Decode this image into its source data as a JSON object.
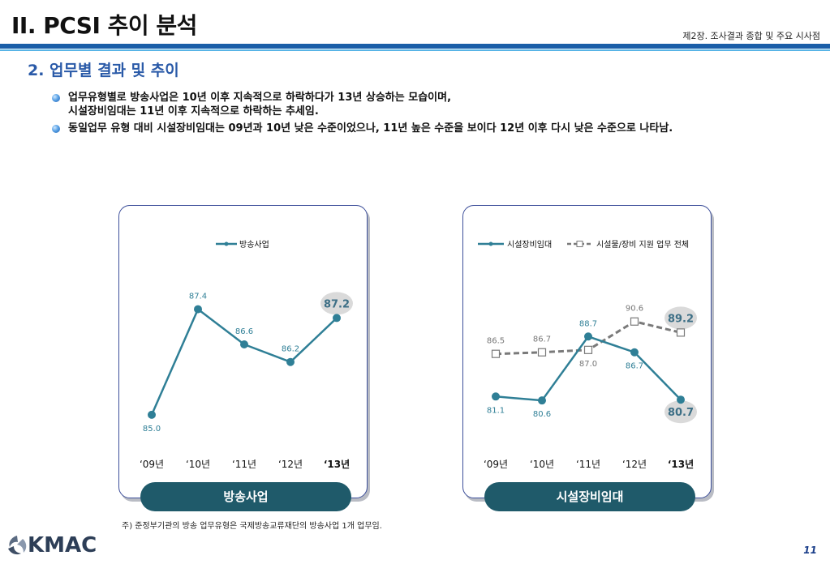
{
  "header": {
    "title": "II. PCSI 추이 분석",
    "chapter": "제2장. 조사결과 종합 및 주요 시사점"
  },
  "section_title": "2. 업무별 결과 및 추이",
  "bullets": [
    {
      "line1": "업무유형별로 방송사업은 10년 이후 지속적으로 하락하다가 13년 상승하는 모습이며,",
      "line2": "시설장비임대는 11년 이후 지속적으로 하락하는 추세임."
    },
    {
      "line1": "동일업무 유형 대비 시설장비임대는 09년과 10년 낮은 수준이었으나, 11년 높은 수준을 보이다 12년 이후 다시 낮은 수준으로 나타남.",
      "line2": ""
    }
  ],
  "cards": [
    {
      "label": "방송사업"
    },
    {
      "label": "시설장비임대"
    }
  ],
  "footnote": "주) 준정부기관의 방송 업무유형은 국제방송교류재단의 방송사업 1개 업무임.",
  "logo": "KMAC",
  "page_number": "11",
  "colors": {
    "teal": "#2f7f96",
    "gray": "#7a7a7a",
    "highlight": "#3d6f86",
    "blue_rule": "#1a5ea8"
  },
  "chart_data": [
    {
      "type": "line",
      "categories": [
        "‘09년",
        "‘10년",
        "‘11년",
        "‘12년",
        "‘13년"
      ],
      "series": [
        {
          "name": "방송사업",
          "values": [
            85.0,
            87.4,
            86.6,
            86.2,
            87.2
          ],
          "labels": [
            "85.0",
            "87.4",
            "86.6",
            "86.2",
            "87.2"
          ],
          "style": "solid-circle",
          "color": "#2f7f96"
        }
      ],
      "ylim": [
        84.5,
        88.0
      ],
      "highlight_last": true,
      "legend": "top-center"
    },
    {
      "type": "line",
      "categories": [
        "‘09년",
        "‘10년",
        "‘11년",
        "‘12년",
        "‘13년"
      ],
      "series": [
        {
          "name": "시설장비임대",
          "values": [
            81.1,
            80.6,
            88.7,
            86.7,
            80.7
          ],
          "labels": [
            "81.1",
            "80.6",
            "88.7",
            "86.7",
            "80.7"
          ],
          "style": "solid-circle",
          "color": "#2f7f96"
        },
        {
          "name": "시설물/장비 지원 업무 전체",
          "values": [
            86.5,
            86.7,
            87.0,
            90.6,
            89.2
          ],
          "labels": [
            "86.5",
            "86.7",
            "87.0",
            "90.6",
            "89.2"
          ],
          "style": "dashed-square",
          "color": "#7a7a7a"
        }
      ],
      "ylim": [
        76.0,
        95.5
      ],
      "highlight_last": true,
      "legend": "top-center"
    }
  ]
}
